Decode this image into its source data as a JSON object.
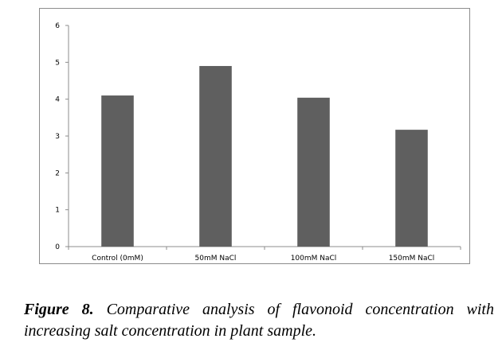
{
  "chart_data": {
    "type": "bar",
    "categories": [
      "Control (0mM)",
      "50mM NaCl",
      "100mM NaCl",
      "150mM NaCl"
    ],
    "values": [
      4.1,
      4.9,
      4.04,
      3.17
    ],
    "ylim": [
      0,
      6
    ],
    "yticks": [
      0,
      1,
      2,
      3,
      4,
      5,
      6
    ],
    "title": "",
    "xlabel": "",
    "ylabel": "",
    "grid": false,
    "bar_color": "#5f5f5f"
  },
  "caption": {
    "label": "Figure 8.",
    "text": "Comparative analysis of flavonoid concentration with increasing salt concentration in plant sample."
  }
}
